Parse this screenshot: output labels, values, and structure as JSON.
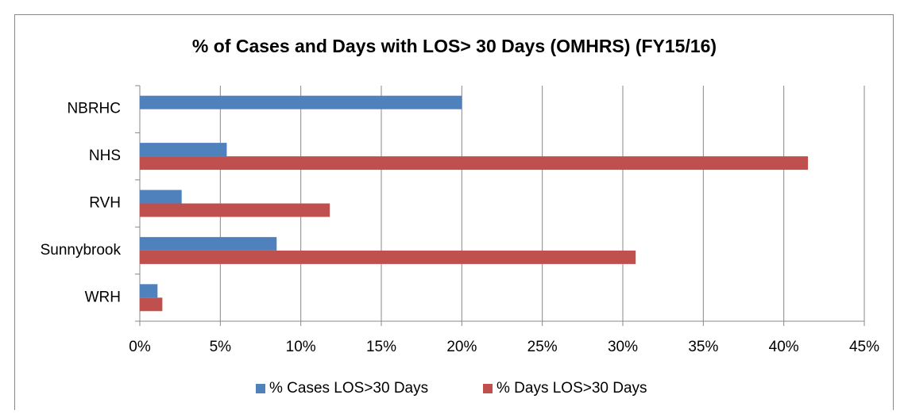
{
  "chart_data": {
    "type": "hbar",
    "title": "% of Cases and Days with LOS> 30 Days (OMHRS) (FY15/16)",
    "categories": [
      "NBRHC",
      "NHS",
      "RVH",
      "Sunnybrook",
      "WRH"
    ],
    "series": [
      {
        "name": "% Cases LOS>30 Days",
        "color": "#4f81bd",
        "values": [
          20,
          5.4,
          2.6,
          8.5,
          1.1
        ]
      },
      {
        "name": "% Days LOS>30 Days",
        "color": "#c0504d",
        "values": [
          null,
          41.5,
          11.8,
          30.8,
          1.4
        ]
      }
    ],
    "xlim": [
      0,
      45
    ],
    "xticks": [
      {
        "value": 0,
        "label": "0%"
      },
      {
        "value": 5,
        "label": "5%"
      },
      {
        "value": 10,
        "label": "10%"
      },
      {
        "value": 15,
        "label": "15%"
      },
      {
        "value": 20,
        "label": "20%"
      },
      {
        "value": 25,
        "label": "25%"
      },
      {
        "value": 30,
        "label": "30%"
      },
      {
        "value": 35,
        "label": "35%"
      },
      {
        "value": 40,
        "label": "40%"
      },
      {
        "value": 45,
        "label": "45%"
      }
    ],
    "grid": true,
    "legend": "bottom"
  }
}
